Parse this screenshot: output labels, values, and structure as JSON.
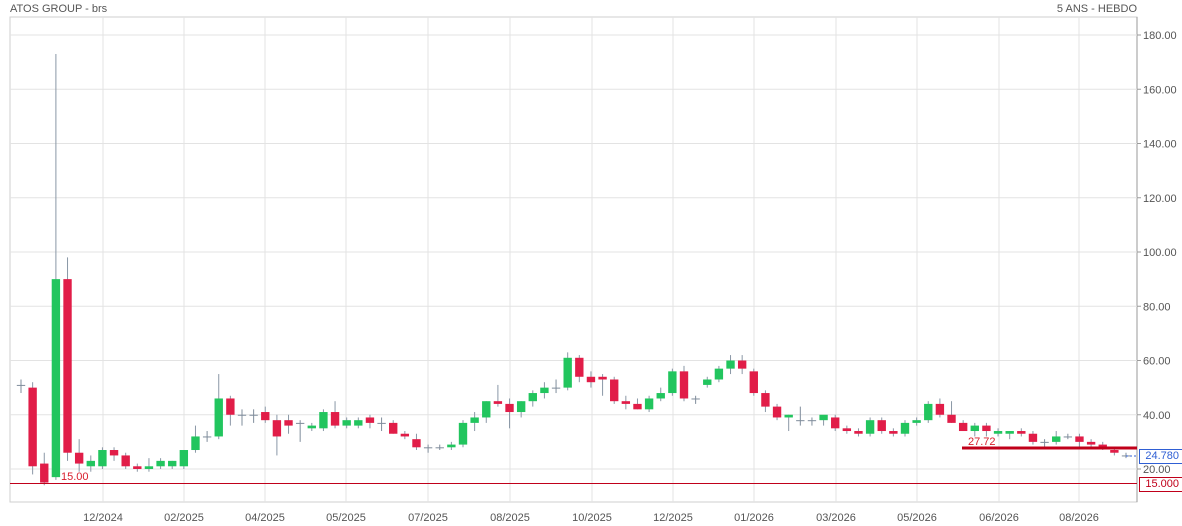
{
  "header": {
    "title": "ATOS GROUP - brs",
    "period": "5 ANS - HEBDO"
  },
  "indicators": {
    "last_price": "24.780",
    "low_level": "15.000",
    "low_level_label": "15.00",
    "support_label": "27.72"
  },
  "colors": {
    "up": "#22c55e",
    "down": "#e11d48",
    "neutral": "#7f8c9b",
    "grid": "#e3e3e3",
    "support": "#c0001a"
  },
  "chart_data": {
    "type": "candlestick",
    "title": "ATOS GROUP - brs",
    "ylim": [
      0,
      185
    ],
    "yticks": [
      20,
      40,
      60,
      80,
      100,
      120,
      140,
      160,
      180
    ],
    "ytick_labels": [
      "20.00",
      "40.00",
      "60.00",
      "80.00",
      "100.00",
      "120.00",
      "140.00",
      "160.00",
      "180.00"
    ],
    "xtick_labels": [
      "12/2024",
      "02/2025",
      "04/2025",
      "05/2025",
      "07/2025",
      "08/2025",
      "10/2025",
      "12/2025",
      "01/2026",
      "03/2026",
      "05/2026",
      "06/2026",
      "08/2026"
    ],
    "horizontal_lines": [
      {
        "value": 15.0,
        "label": "15.00"
      },
      {
        "value": 27.72,
        "label": "27.72"
      }
    ],
    "last_value": 24.78,
    "candles": [
      [
        51,
        53,
        48,
        51
      ],
      [
        50,
        52,
        18,
        21
      ],
      [
        22,
        26,
        14,
        15
      ],
      [
        17,
        173,
        16,
        90
      ],
      [
        90,
        98,
        23,
        26
      ],
      [
        26,
        31,
        19,
        22
      ],
      [
        21,
        25,
        19,
        23
      ],
      [
        21,
        28,
        20,
        27
      ],
      [
        27,
        28,
        23,
        25
      ],
      [
        25,
        26,
        20,
        21
      ],
      [
        21,
        22,
        19,
        20
      ],
      [
        20,
        24,
        19,
        21
      ],
      [
        21,
        24,
        20,
        23
      ],
      [
        21,
        23,
        20,
        23
      ],
      [
        21,
        27,
        20,
        27
      ],
      [
        27,
        36,
        26,
        32
      ],
      [
        32,
        34,
        30,
        32
      ],
      [
        32,
        55,
        31,
        46
      ],
      [
        46,
        47,
        36,
        40
      ],
      [
        40,
        42,
        36,
        40
      ],
      [
        40,
        42,
        37,
        40
      ],
      [
        41,
        43,
        37,
        38
      ],
      [
        38,
        40,
        25,
        32
      ],
      [
        38,
        40,
        33,
        36
      ],
      [
        37,
        38,
        30,
        37
      ],
      [
        35,
        37,
        34,
        36
      ],
      [
        35,
        42,
        34,
        41
      ],
      [
        41,
        45,
        35,
        36
      ],
      [
        36,
        39,
        35,
        38
      ],
      [
        36,
        39,
        35,
        38
      ],
      [
        39,
        40,
        35,
        37
      ],
      [
        37,
        39,
        34,
        37
      ],
      [
        37,
        38,
        33,
        33
      ],
      [
        33,
        34,
        31,
        32
      ],
      [
        31,
        33,
        27,
        28
      ],
      [
        28,
        29,
        26,
        28
      ],
      [
        28,
        29,
        27,
        28
      ],
      [
        28,
        30,
        27,
        29
      ],
      [
        29,
        38,
        28,
        37
      ],
      [
        37,
        41,
        34,
        39
      ],
      [
        39,
        45,
        37,
        45
      ],
      [
        45,
        51,
        43,
        44
      ],
      [
        44,
        46,
        35,
        41
      ],
      [
        41,
        45,
        39,
        45
      ],
      [
        45,
        49,
        43,
        48
      ],
      [
        48,
        52,
        46,
        50
      ],
      [
        50,
        53,
        48,
        50
      ],
      [
        50,
        63,
        49,
        61
      ],
      [
        61,
        62,
        52,
        54
      ],
      [
        54,
        56,
        50,
        52
      ],
      [
        54,
        55,
        47,
        53
      ],
      [
        53,
        54,
        44,
        45
      ],
      [
        45,
        47,
        42,
        44
      ],
      [
        44,
        46,
        42,
        42
      ],
      [
        42,
        47,
        41,
        46
      ],
      [
        46,
        50,
        45,
        48
      ],
      [
        48,
        57,
        47,
        56
      ],
      [
        56,
        58,
        45,
        46
      ],
      [
        46,
        47,
        44,
        46
      ],
      [
        51,
        54,
        50,
        53
      ],
      [
        53,
        58,
        52,
        57
      ],
      [
        57,
        62,
        55,
        60
      ],
      [
        60,
        62,
        55,
        57
      ],
      [
        56,
        57,
        47,
        48
      ],
      [
        48,
        49,
        41,
        43
      ],
      [
        43,
        44,
        38,
        39
      ],
      [
        39,
        40,
        34,
        40
      ],
      [
        38,
        43,
        36,
        38
      ],
      [
        38,
        39,
        36,
        38
      ],
      [
        38,
        39,
        36,
        40
      ],
      [
        39,
        40,
        34,
        35
      ],
      [
        35,
        36,
        33,
        34
      ],
      [
        34,
        35,
        32,
        33
      ],
      [
        33,
        39,
        32,
        38
      ],
      [
        38,
        39,
        33,
        34
      ],
      [
        34,
        35,
        32,
        33
      ],
      [
        33,
        38,
        32,
        37
      ],
      [
        37,
        39,
        36,
        38
      ],
      [
        38,
        45,
        37,
        44
      ],
      [
        44,
        46,
        39,
        40
      ],
      [
        40,
        45,
        37,
        37
      ],
      [
        37,
        38,
        34,
        34
      ],
      [
        34,
        37,
        32,
        36
      ],
      [
        36,
        37,
        32,
        34
      ],
      [
        33,
        35,
        32,
        34
      ],
      [
        33,
        34,
        31,
        34
      ],
      [
        34,
        35,
        32,
        33
      ],
      [
        33,
        34,
        29,
        30
      ],
      [
        30,
        31,
        28,
        30
      ],
      [
        30,
        34,
        29,
        32
      ],
      [
        32,
        33,
        31,
        32
      ],
      [
        32,
        33,
        28,
        30
      ],
      [
        30,
        31,
        28,
        29
      ],
      [
        29,
        30,
        27,
        28
      ],
      [
        27,
        28,
        25,
        26
      ],
      [
        25,
        26,
        24,
        25
      ]
    ]
  }
}
